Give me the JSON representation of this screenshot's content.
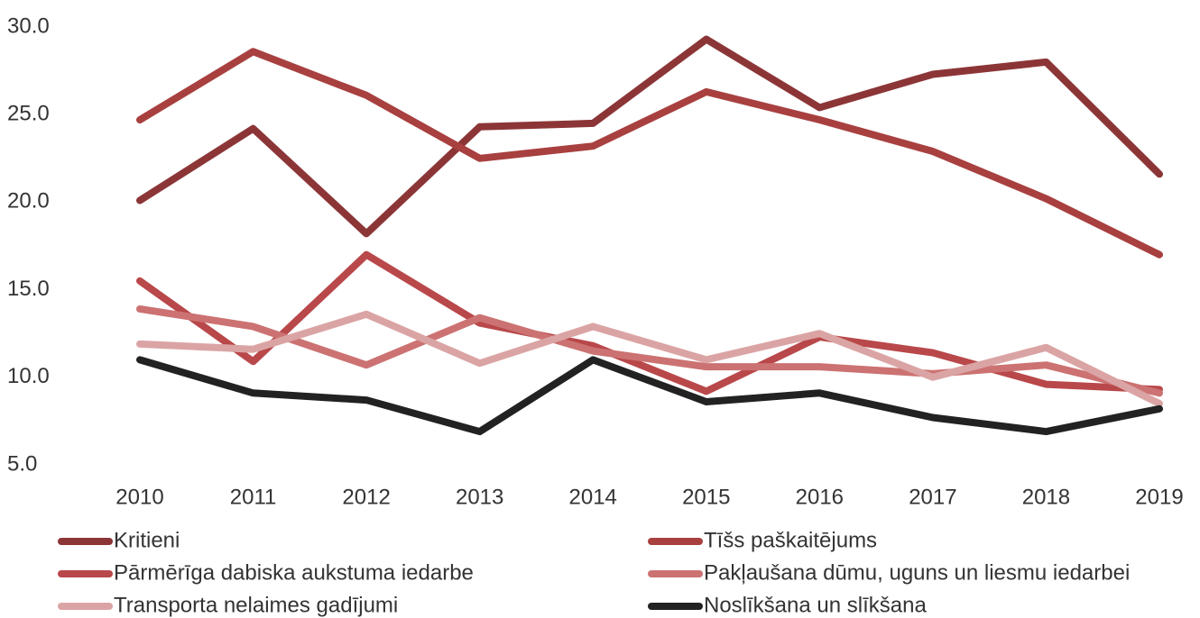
{
  "chart_data": {
    "type": "line",
    "categories": [
      "2010",
      "2011",
      "2012",
      "2013",
      "2014",
      "2015",
      "2016",
      "2017",
      "2018",
      "2019"
    ],
    "series": [
      {
        "name": "Kritieni",
        "color": "#8c3537",
        "values": [
          20.1,
          24.2,
          18.2,
          24.3,
          24.5,
          29.3,
          25.4,
          27.3,
          28.0,
          21.6
        ]
      },
      {
        "name": "Tīšs paškaitējums",
        "color": "#a8403f",
        "values": [
          24.7,
          28.6,
          26.1,
          22.5,
          23.2,
          26.3,
          24.7,
          22.9,
          20.2,
          17.0
        ]
      },
      {
        "name": "Pārmērīga dabiska aukstuma iedarbe",
        "color": "#b9484a",
        "values": [
          15.5,
          10.9,
          17.0,
          13.1,
          11.8,
          9.2,
          12.3,
          11.4,
          9.6,
          9.3
        ]
      },
      {
        "name": "Pakļaušana dūmu, uguns un liesmu iedarbei",
        "color": "#cc7272",
        "values": [
          13.9,
          12.9,
          10.7,
          13.4,
          11.5,
          10.6,
          10.6,
          10.2,
          10.7,
          9.1
        ]
      },
      {
        "name": "Transporta nelaimes gadījumi",
        "color": "#dba4a4",
        "values": [
          11.9,
          11.6,
          13.6,
          10.8,
          12.9,
          11.0,
          12.5,
          10.0,
          11.7,
          8.5
        ]
      },
      {
        "name": "Noslīkšana un slīkšana",
        "color": "#222222",
        "values": [
          11.0,
          9.1,
          8.7,
          6.9,
          11.0,
          8.6,
          9.1,
          7.7,
          6.9,
          8.2
        ]
      }
    ],
    "ylim": [
      5,
      30
    ],
    "yticks": [
      {
        "value": 5,
        "label": "5.0"
      },
      {
        "value": 10,
        "label": "10.0"
      },
      {
        "value": 15,
        "label": "15.0"
      },
      {
        "value": 20,
        "label": "20.0"
      },
      {
        "value": 25,
        "label": "25.0"
      },
      {
        "value": 30,
        "label": "30.0"
      }
    ],
    "legend": "bottom"
  }
}
